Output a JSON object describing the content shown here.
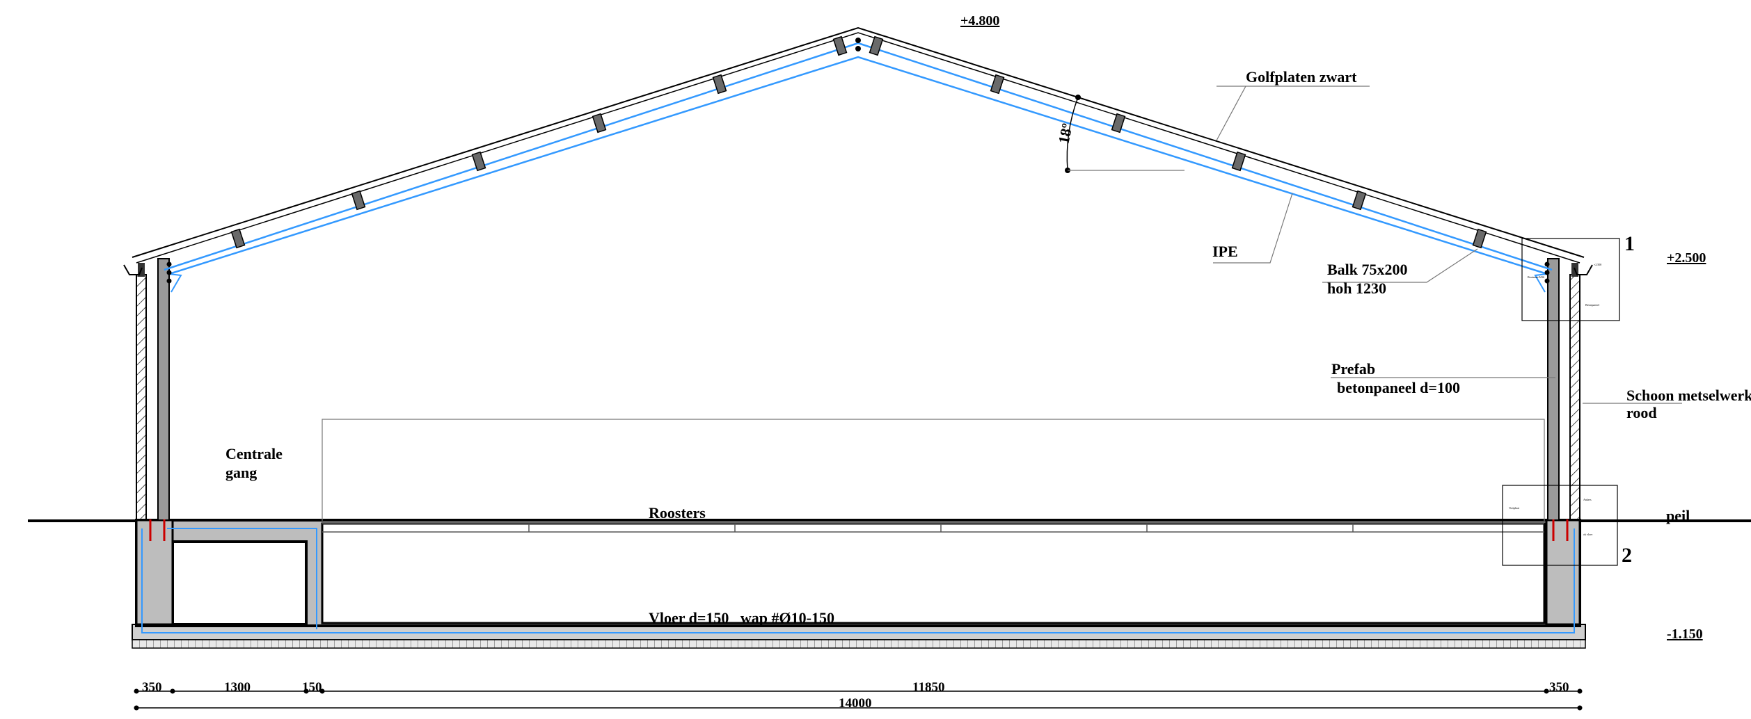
{
  "levels": {
    "top": "+4.800",
    "eave": "+2.500",
    "ground": "peil",
    "bottom": "-1.150"
  },
  "labels": {
    "roof_sheets": "Golfplaten zwart",
    "angle": "18º",
    "beam": "IPE",
    "purlin_line1": "Balk 75x200",
    "purlin_line2": "hoh 1230",
    "panel_line1": "Prefab",
    "panel_line2": "betonpaneel d=100",
    "masonry_line1": "Schoon metselwerk",
    "masonry_line2": "rood",
    "corridor_line1": "Centrale",
    "corridor_line2": "gang",
    "slats": "Roosters",
    "floor": "Vloer d=150   wap #Ø10-150"
  },
  "details": {
    "detail_1": "1",
    "detail_2": "2"
  },
  "dimensions": {
    "segments": [
      "350",
      "1300",
      "150",
      "11850",
      "350"
    ],
    "total": "14000"
  },
  "colors": {
    "line": "#000000",
    "steel": "#3399ff",
    "concrete": "#bdbdbd",
    "rebar": "#cc0000",
    "purlin": "#6a6a6a"
  }
}
